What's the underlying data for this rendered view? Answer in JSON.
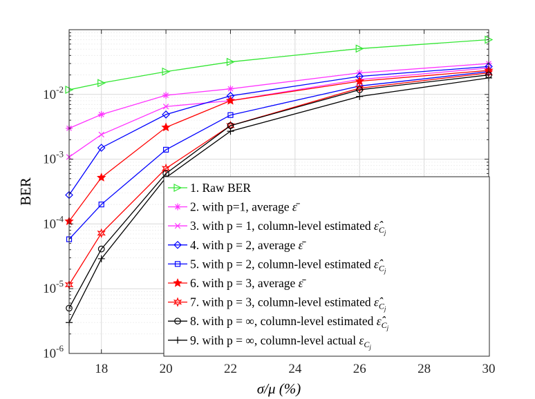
{
  "chart_data": {
    "type": "line",
    "xlabel": "σ/μ (%)",
    "ylabel": "BER",
    "xlim": [
      17,
      30
    ],
    "ylim": [
      1e-06,
      0.1
    ],
    "yscale": "log",
    "grid": true,
    "legend_position": "bottom-right",
    "x_ticks": [
      18,
      20,
      22,
      24,
      26,
      28,
      30
    ],
    "x_tick_labels": [
      "18",
      "20",
      "22",
      "24",
      "26",
      "28",
      "30"
    ],
    "y_tick_exponents": [
      -6,
      -5,
      -4,
      -3,
      -2
    ],
    "y_tick_base": "10",
    "x": [
      17,
      18,
      20,
      22,
      26,
      30
    ],
    "series": [
      {
        "name": "1. Raw BER",
        "color": "#33e633",
        "marker": "triangle-right",
        "values": [
          0.0118,
          0.015,
          0.0225,
          0.0318,
          0.051,
          0.07
        ]
      },
      {
        "name": "2. with p=1, average ε̄",
        "color": "#ff33ff",
        "marker": "asterisk",
        "values": [
          0.003,
          0.0049,
          0.0097,
          0.0122,
          0.0215,
          0.03
        ]
      },
      {
        "name": "3. with p = 1, column-level estimated ε̂_{C_j}",
        "color": "#ff33ff",
        "marker": "x",
        "values": [
          0.00108,
          0.0024,
          0.0065,
          0.008,
          0.017,
          0.0256
        ]
      },
      {
        "name": "4. with p = 2, average ε̄",
        "color": "#0000ff",
        "marker": "diamond",
        "values": [
          0.00028,
          0.0015,
          0.0049,
          0.0095,
          0.019,
          0.027
        ]
      },
      {
        "name": "5. with p = 2, column-level estimated ε̂_{C_j}",
        "color": "#0000ff",
        "marker": "square",
        "values": [
          5.8e-05,
          0.0002,
          0.0014,
          0.0048,
          0.0135,
          0.0225
        ]
      },
      {
        "name": "6. with p = 3, average ε̄",
        "color": "#ff0000",
        "marker": "star",
        "values": [
          0.00011,
          0.00052,
          0.0031,
          0.008,
          0.016,
          0.0235
        ]
      },
      {
        "name": "7. with p = 3, column-level estimated ε̂_{C_j}",
        "color": "#ff0000",
        "marker": "hexagram",
        "values": [
          1.15e-05,
          7.2e-05,
          0.00072,
          0.0033,
          0.0125,
          0.0215
        ]
      },
      {
        "name": "8. with p = ∞, column-level estimated ε̂_{C_j}",
        "color": "#000000",
        "marker": "circle",
        "values": [
          5e-06,
          4.1e-05,
          0.0006,
          0.0033,
          0.0118,
          0.02
        ]
      },
      {
        "name": "9. with p = ∞, column-level actual ε_{C_j}",
        "color": "#000000",
        "marker": "plus",
        "values": [
          3e-06,
          2.9e-05,
          0.00052,
          0.0027,
          0.0093,
          0.018
        ]
      }
    ]
  },
  "legend": {
    "entries": [
      {
        "prefix": "1. Raw BER",
        "symbol": "",
        "sub": ""
      },
      {
        "prefix": "2. with p=1, average ",
        "symbol": "ε̄",
        "sub": ""
      },
      {
        "prefix": "3. with p = 1, column-level estimated ",
        "symbol": "ε̂",
        "sub": "C_j"
      },
      {
        "prefix": "4. with p = 2, average ",
        "symbol": "ε̄",
        "sub": ""
      },
      {
        "prefix": "5. with p = 2, column-level estimated ",
        "symbol": "ε̂",
        "sub": "C_j"
      },
      {
        "prefix": "6. with p = 3, average ",
        "symbol": "ε̄",
        "sub": ""
      },
      {
        "prefix": "7. with p = 3, column-level estimated ",
        "symbol": "ε̂",
        "sub": "C_j"
      },
      {
        "prefix": "8. with p = ∞, column-level estimated ",
        "symbol": "ε̂",
        "sub": "C_j"
      },
      {
        "prefix": "9. with p = ∞, column-level actual ",
        "symbol": "ε",
        "sub": "C_j"
      }
    ]
  }
}
